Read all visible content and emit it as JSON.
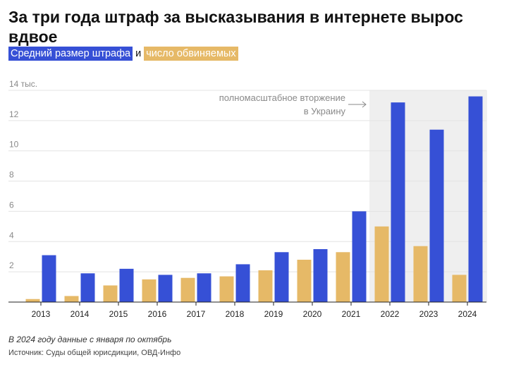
{
  "title": "За три года штраф за высказывания в интернете вырос вдвое",
  "legend": {
    "fine": "Средний размер штрафа",
    "and": "и",
    "defendants": "число обвиняемых"
  },
  "annotation": {
    "line1": "полномасштабное вторжение",
    "line2": "в Украину"
  },
  "footnote": "В 2024 году данные с января по октябрь",
  "source": "Источник: Суды общей юрисдикции, ОВД-Инфо",
  "colors": {
    "fine": "#3650d6",
    "defendants": "#e6b967",
    "highlight": "#efefef",
    "grid": "#e3e3e3"
  },
  "chart_data": {
    "type": "bar",
    "categories": [
      "2013",
      "2014",
      "2015",
      "2016",
      "2017",
      "2018",
      "2019",
      "2020",
      "2021",
      "2022",
      "2023",
      "2024"
    ],
    "series": [
      {
        "name": "число обвиняемых",
        "values": [
          0.2,
          0.4,
          1.1,
          1.5,
          1.6,
          1.7,
          2.1,
          2.8,
          3.3,
          5.0,
          3.7,
          1.8
        ]
      },
      {
        "name": "Средний размер штрафа",
        "values": [
          3.1,
          1.9,
          2.2,
          1.8,
          1.9,
          2.5,
          3.3,
          3.5,
          6.0,
          13.2,
          11.4,
          13.6
        ]
      }
    ],
    "yticks": [
      "2",
      "4",
      "6",
      "8",
      "10",
      "12",
      "14 тыс."
    ],
    "ylim": [
      0,
      14
    ],
    "highlight_from": "2022",
    "grid": true
  }
}
